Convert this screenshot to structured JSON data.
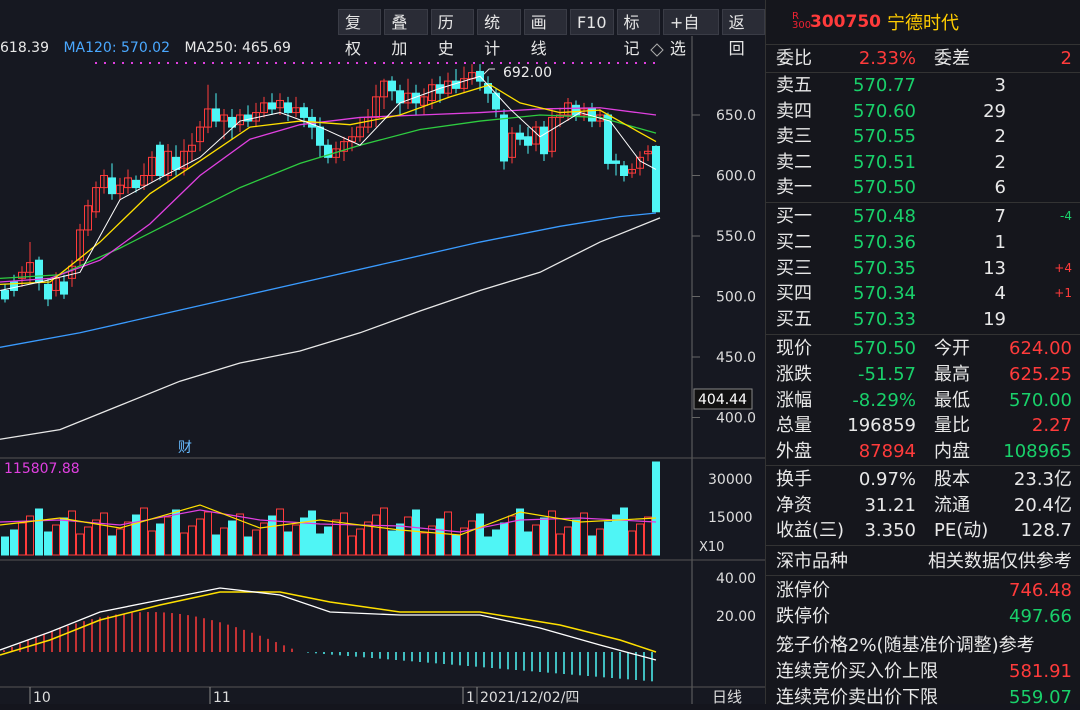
{
  "toolbar": {
    "buttons": [
      "复权",
      "叠加",
      "历史",
      "统计",
      "画线",
      "F10",
      "标记",
      "+自选",
      "返回"
    ]
  },
  "ma": {
    "ma60": "618.39",
    "ma120": "MA120: 570.02",
    "ma250": "MA250: 465.69"
  },
  "price_axis": [
    "650.0",
    "600.0",
    "550.0",
    "500.0",
    "450.0",
    "400.0"
  ],
  "price_current_label": "404.44",
  "high_label": "692.00",
  "cai_label": "财",
  "volume": {
    "ma_value": "115807.88",
    "axis": [
      "30000",
      "15000"
    ],
    "unit": "X10"
  },
  "macd": {
    "axis": [
      "40.00",
      "20.00"
    ]
  },
  "date_axis": {
    "labels": [
      "10",
      "11",
      "1",
      "2021/12/02/四"
    ],
    "period": "日线"
  },
  "stock": {
    "badge": "R",
    "badge2": "300",
    "code": "300750",
    "name": "宁德时代"
  },
  "weibi": {
    "label": "委比",
    "value": "2.33%",
    "diff_label": "委差",
    "diff": "2"
  },
  "asks": [
    {
      "label": "卖五",
      "price": "570.77",
      "vol": "3",
      "chg": ""
    },
    {
      "label": "卖四",
      "price": "570.60",
      "vol": "29",
      "chg": ""
    },
    {
      "label": "卖三",
      "price": "570.55",
      "vol": "2",
      "chg": ""
    },
    {
      "label": "卖二",
      "price": "570.51",
      "vol": "2",
      "chg": ""
    },
    {
      "label": "卖一",
      "price": "570.50",
      "vol": "6",
      "chg": ""
    }
  ],
  "bids": [
    {
      "label": "买一",
      "price": "570.48",
      "vol": "7",
      "chg": "-4"
    },
    {
      "label": "买二",
      "price": "570.36",
      "vol": "1",
      "chg": ""
    },
    {
      "label": "买三",
      "price": "570.35",
      "vol": "13",
      "chg": "+4"
    },
    {
      "label": "买四",
      "price": "570.34",
      "vol": "4",
      "chg": "+1"
    },
    {
      "label": "买五",
      "price": "570.33",
      "vol": "19",
      "chg": ""
    }
  ],
  "quote": [
    {
      "l1": "现价",
      "v1": "570.50",
      "c1": "green",
      "l2": "今开",
      "v2": "624.00",
      "c2": "red"
    },
    {
      "l1": "涨跌",
      "v1": "-51.57",
      "c1": "green",
      "l2": "最高",
      "v2": "625.25",
      "c2": "red"
    },
    {
      "l1": "涨幅",
      "v1": "-8.29%",
      "c1": "green",
      "l2": "最低",
      "v2": "570.00",
      "c2": "green"
    },
    {
      "l1": "总量",
      "v1": "196859",
      "c1": "white",
      "l2": "量比",
      "v2": "2.27",
      "c2": "red"
    },
    {
      "l1": "外盘",
      "v1": "87894",
      "c1": "red",
      "l2": "内盘",
      "v2": "108965",
      "c2": "green"
    }
  ],
  "fundamentals": [
    {
      "l1": "换手",
      "v1": "0.97%",
      "l2": "股本",
      "v2": "23.3亿"
    },
    {
      "l1": "净资",
      "v1": "31.21",
      "l2": "流通",
      "v2": "20.4亿"
    },
    {
      "l1": "收益(三)",
      "v1": "3.350",
      "l2": "PE(动)",
      "v2": "128.7"
    }
  ],
  "market": {
    "label": "深市品种",
    "note": "相关数据仅供参考"
  },
  "limits": [
    {
      "label": "涨停价",
      "value": "746.48",
      "color": "red"
    },
    {
      "label": "跌停价",
      "value": "497.66",
      "color": "green"
    }
  ],
  "cage": {
    "text": "笼子价格2%(随基准价调整)参考"
  },
  "auction": [
    {
      "label": "连续竞价买入价上限",
      "value": "581.91",
      "color": "red"
    },
    {
      "label": "连续竞价卖出价下限",
      "value": "559.07",
      "color": "green"
    }
  ],
  "colors": {
    "up": "#ff3b3b",
    "down": "#19d06a",
    "cyan": "#4ff5f5",
    "bg": "#161821"
  }
}
